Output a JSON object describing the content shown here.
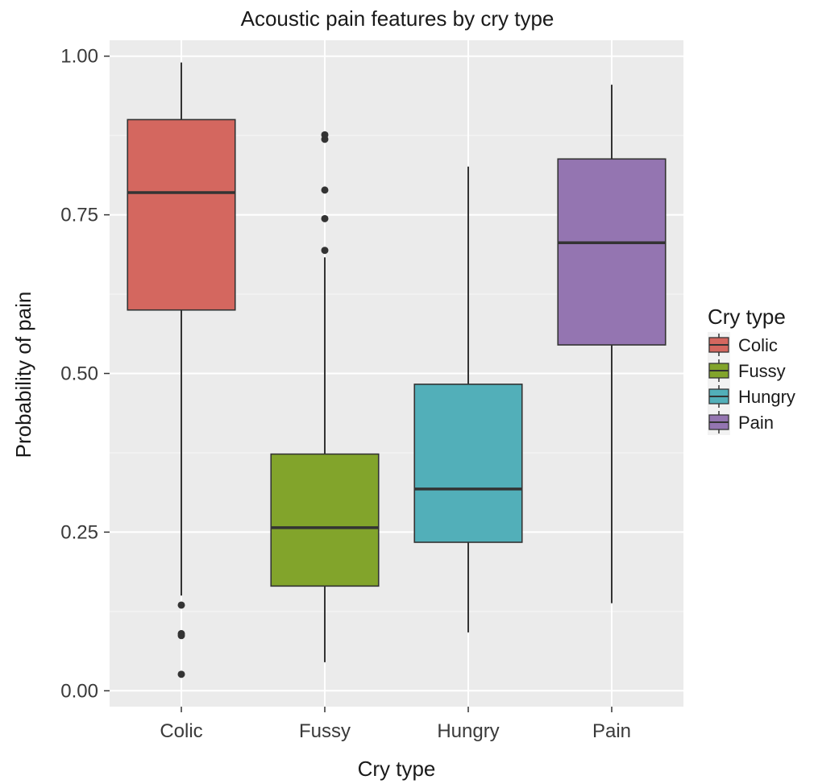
{
  "chart_data": {
    "type": "box",
    "title": "Acoustic pain features by cry type",
    "xlabel": "Cry type",
    "ylabel": "Probability of pain",
    "ylim": [
      -0.025,
      1.025
    ],
    "yticks": [
      0,
      0.25,
      0.5,
      0.75,
      1
    ],
    "ytick_labels": [
      "0.00",
      "0.25",
      "0.50",
      "0.75",
      "1.00"
    ],
    "categories": [
      "Colic",
      "Fussy",
      "Hungry",
      "Pain"
    ],
    "boxes": [
      {
        "category": "Colic",
        "color": "#D4675F",
        "whisker_low": 0.15,
        "q1": 0.6,
        "median": 0.785,
        "q3": 0.9,
        "whisker_high": 0.99,
        "outliers": [
          0.135,
          0.09,
          0.087,
          0.026
        ]
      },
      {
        "category": "Fussy",
        "color": "#82A42B",
        "whisker_low": 0.045,
        "q1": 0.165,
        "median": 0.257,
        "q3": 0.373,
        "whisker_high": 0.683,
        "outliers": [
          0.876,
          0.869,
          0.789,
          0.744,
          0.694
        ]
      },
      {
        "category": "Hungry",
        "color": "#52AFB9",
        "whisker_low": 0.092,
        "q1": 0.234,
        "median": 0.318,
        "q3": 0.483,
        "whisker_high": 0.826,
        "outliers": []
      },
      {
        "category": "Pain",
        "color": "#9475B1",
        "whisker_low": 0.138,
        "q1": 0.545,
        "median": 0.706,
        "q3": 0.838,
        "whisker_high": 0.955,
        "outliers": []
      }
    ],
    "grid": true,
    "legend": {
      "title": "Cry type",
      "position": "right",
      "items": [
        {
          "label": "Colic",
          "color": "#D4675F"
        },
        {
          "label": "Fussy",
          "color": "#82A42B"
        },
        {
          "label": "Hungry",
          "color": "#52AFB9"
        },
        {
          "label": "Pain",
          "color": "#9475B1"
        }
      ]
    }
  }
}
